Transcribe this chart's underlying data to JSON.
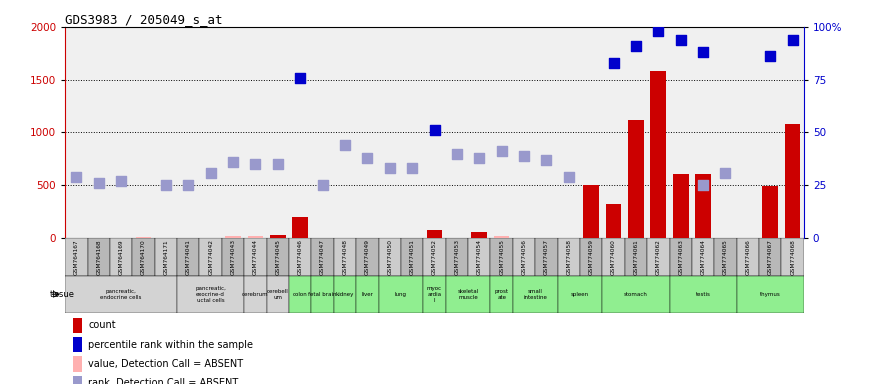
{
  "title": "GDS3983 / 205049_s_at",
  "gsm_labels": [
    "GSM764167",
    "GSM764168",
    "GSM764169",
    "GSM764170",
    "GSM764171",
    "GSM774041",
    "GSM774042",
    "GSM774043",
    "GSM774044",
    "GSM774045",
    "GSM774046",
    "GSM774047",
    "GSM774048",
    "GSM774049",
    "GSM774050",
    "GSM774051",
    "GSM774052",
    "GSM774053",
    "GSM774054",
    "GSM774055",
    "GSM774056",
    "GSM774057",
    "GSM774058",
    "GSM774059",
    "GSM774060",
    "GSM774061",
    "GSM774062",
    "GSM774063",
    "GSM774064",
    "GSM774065",
    "GSM774066",
    "GSM774067",
    "GSM774068"
  ],
  "count_values": [
    null,
    null,
    null,
    null,
    null,
    null,
    null,
    null,
    null,
    30,
    200,
    null,
    null,
    null,
    null,
    null,
    80,
    null,
    60,
    null,
    null,
    null,
    null,
    500,
    320,
    1120,
    1580,
    610,
    610,
    null,
    null,
    490,
    1080
  ],
  "count_absent": [
    null,
    null,
    null,
    10,
    null,
    null,
    null,
    15,
    20,
    null,
    null,
    null,
    null,
    null,
    null,
    null,
    null,
    null,
    null,
    15,
    null,
    null,
    null,
    null,
    null,
    null,
    null,
    null,
    null,
    null,
    null,
    null,
    null
  ],
  "rank_present": [
    29,
    26,
    27,
    null,
    null,
    25,
    31,
    null,
    35,
    35,
    null,
    25,
    44,
    38,
    33,
    33,
    null,
    40,
    38,
    41,
    39,
    37,
    29,
    null,
    null,
    null,
    null,
    null,
    25,
    31,
    null,
    null,
    null
  ],
  "rank_absent": [
    null,
    null,
    null,
    null,
    25,
    null,
    null,
    36,
    null,
    null,
    null,
    null,
    null,
    null,
    null,
    null,
    null,
    null,
    null,
    null,
    null,
    null,
    null,
    null,
    null,
    null,
    null,
    null,
    null,
    null,
    null,
    null,
    null
  ],
  "pct_rank_present": [
    null,
    null,
    null,
    null,
    null,
    null,
    null,
    null,
    null,
    null,
    76,
    null,
    null,
    null,
    null,
    null,
    51,
    null,
    null,
    null,
    null,
    null,
    null,
    null,
    83,
    91,
    98,
    94,
    88,
    null,
    null,
    86,
    94
  ],
  "tissue_groups": [
    {
      "label": "pancreatic,\nendocrine cells",
      "start": 0,
      "end": 4,
      "color": "#d3d3d3"
    },
    {
      "label": "pancreatic,\nexocrine-d\nuctal cells",
      "start": 5,
      "end": 7,
      "color": "#d3d3d3"
    },
    {
      "label": "cerebrum",
      "start": 8,
      "end": 8,
      "color": "#d3d3d3"
    },
    {
      "label": "cerebell\num",
      "start": 9,
      "end": 9,
      "color": "#d3d3d3"
    },
    {
      "label": "colon",
      "start": 10,
      "end": 10,
      "color": "#90ee90"
    },
    {
      "label": "fetal brain",
      "start": 11,
      "end": 11,
      "color": "#90ee90"
    },
    {
      "label": "kidney",
      "start": 12,
      "end": 12,
      "color": "#90ee90"
    },
    {
      "label": "liver",
      "start": 13,
      "end": 13,
      "color": "#90ee90"
    },
    {
      "label": "lung",
      "start": 14,
      "end": 15,
      "color": "#90ee90"
    },
    {
      "label": "myoc\nardia\nl",
      "start": 16,
      "end": 16,
      "color": "#90ee90"
    },
    {
      "label": "skeletal\nmuscle",
      "start": 17,
      "end": 18,
      "color": "#90ee90"
    },
    {
      "label": "prost\nate",
      "start": 19,
      "end": 19,
      "color": "#90ee90"
    },
    {
      "label": "small\nintestine",
      "start": 20,
      "end": 21,
      "color": "#90ee90"
    },
    {
      "label": "spleen",
      "start": 22,
      "end": 23,
      "color": "#90ee90"
    },
    {
      "label": "stomach",
      "start": 24,
      "end": 26,
      "color": "#90ee90"
    },
    {
      "label": "testis",
      "start": 27,
      "end": 29,
      "color": "#90ee90"
    },
    {
      "label": "thymus",
      "start": 30,
      "end": 32,
      "color": "#90ee90"
    }
  ],
  "ylim_left": [
    0,
    2000
  ],
  "ylim_right": [
    0,
    100
  ],
  "yticks_left": [
    0,
    500,
    1000,
    1500,
    2000
  ],
  "yticks_right": [
    0,
    25,
    50,
    75,
    100
  ],
  "bar_color_red": "#cc0000",
  "bar_color_pink": "#ffb0b0",
  "dot_color_blue": "#0000cc",
  "dot_color_lightblue": "#9999cc",
  "bg_color": "#ffffff",
  "plot_bg": "#f0f0f0",
  "legend_items": [
    {
      "color": "#cc0000",
      "label": "count"
    },
    {
      "color": "#0000cc",
      "label": "percentile rank within the sample"
    },
    {
      "color": "#ffb0b0",
      "label": "value, Detection Call = ABSENT"
    },
    {
      "color": "#9999cc",
      "label": "rank, Detection Call = ABSENT"
    }
  ]
}
